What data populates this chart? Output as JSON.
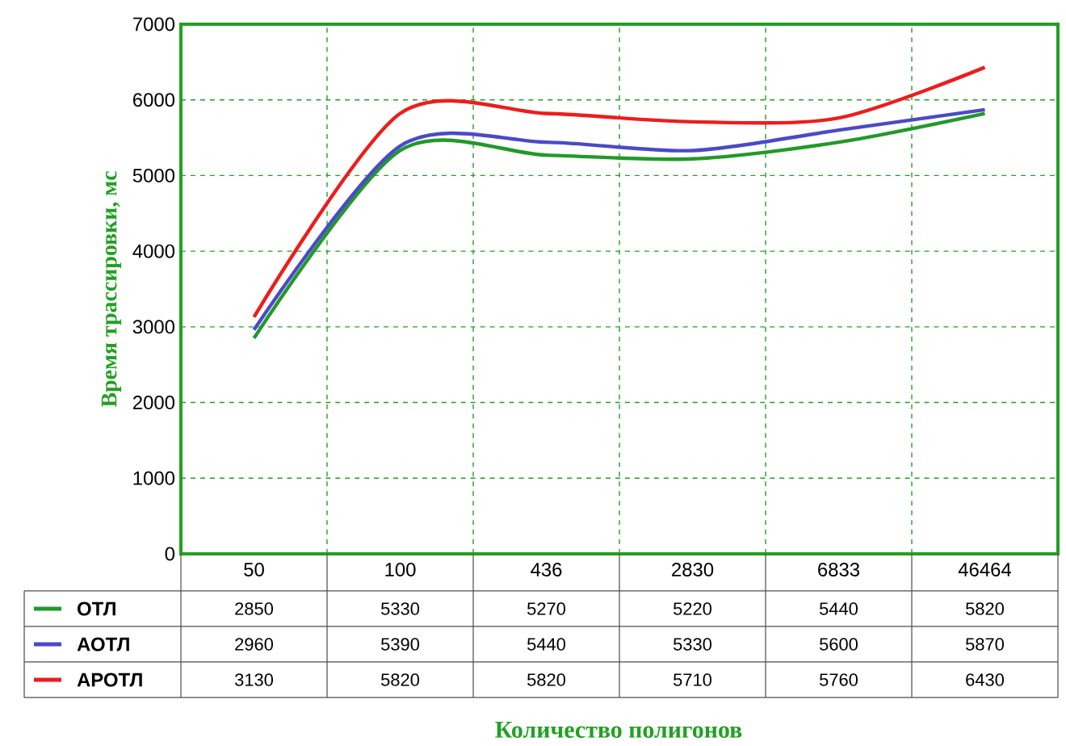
{
  "chart_data": {
    "type": "line",
    "annotations": [
      "Количество полигонов"
    ],
    "ylabel": "Время трассировки, мс",
    "categories": [
      "50",
      "100",
      "436",
      "2830",
      "6833",
      "46464"
    ],
    "series": [
      {
        "name": "ОТЛ",
        "color": "#22992a",
        "values": [
          2850,
          5330,
          5270,
          5220,
          5440,
          5820
        ]
      },
      {
        "name": "АОТЛ",
        "color": "#4a4ac8",
        "values": [
          2960,
          5390,
          5440,
          5330,
          5600,
          5870
        ]
      },
      {
        "name": "АРОТЛ",
        "color": "#ee1c1c",
        "values": [
          3130,
          5820,
          5820,
          5710,
          5760,
          6430
        ]
      }
    ],
    "ylim": [
      0,
      7000
    ],
    "yticks": [
      0,
      1000,
      2000,
      3000,
      4000,
      5000,
      6000,
      7000
    ],
    "grid": true,
    "legend": "bottom",
    "data_labels": true,
    "line_style": "solid",
    "marker": "none"
  }
}
